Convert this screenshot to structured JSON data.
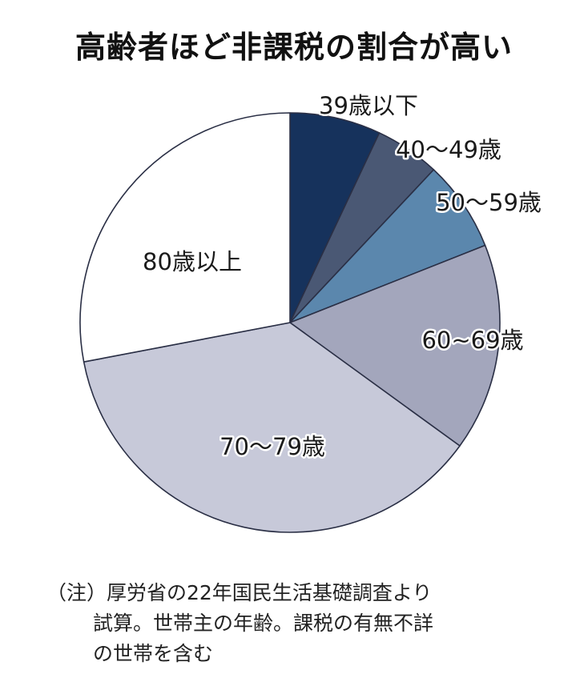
{
  "chart_data": {
    "type": "pie",
    "title": "高齢者ほど非課税の割合が高い",
    "slices": [
      {
        "label": "39歳以下",
        "value": 7,
        "color": "#16325c"
      },
      {
        "label": "40～49歳",
        "value": 5,
        "color": "#4a5874"
      },
      {
        "label": "50～59歳",
        "value": 7,
        "color": "#5b87ad"
      },
      {
        "label": "60~69歳",
        "value": 16,
        "color": "#a3a6bc"
      },
      {
        "label": "70～79歳",
        "value": 37,
        "color": "#c7c9d9"
      },
      {
        "label": "80歳以上",
        "value": 28,
        "color": "#ffffff"
      }
    ]
  },
  "note": {
    "line1": "（注）厚労省の22年国民生活基礎調査より",
    "line2": "試算。世帯主の年齢。課税の有無不詳",
    "line3": "の世帯を含む"
  }
}
